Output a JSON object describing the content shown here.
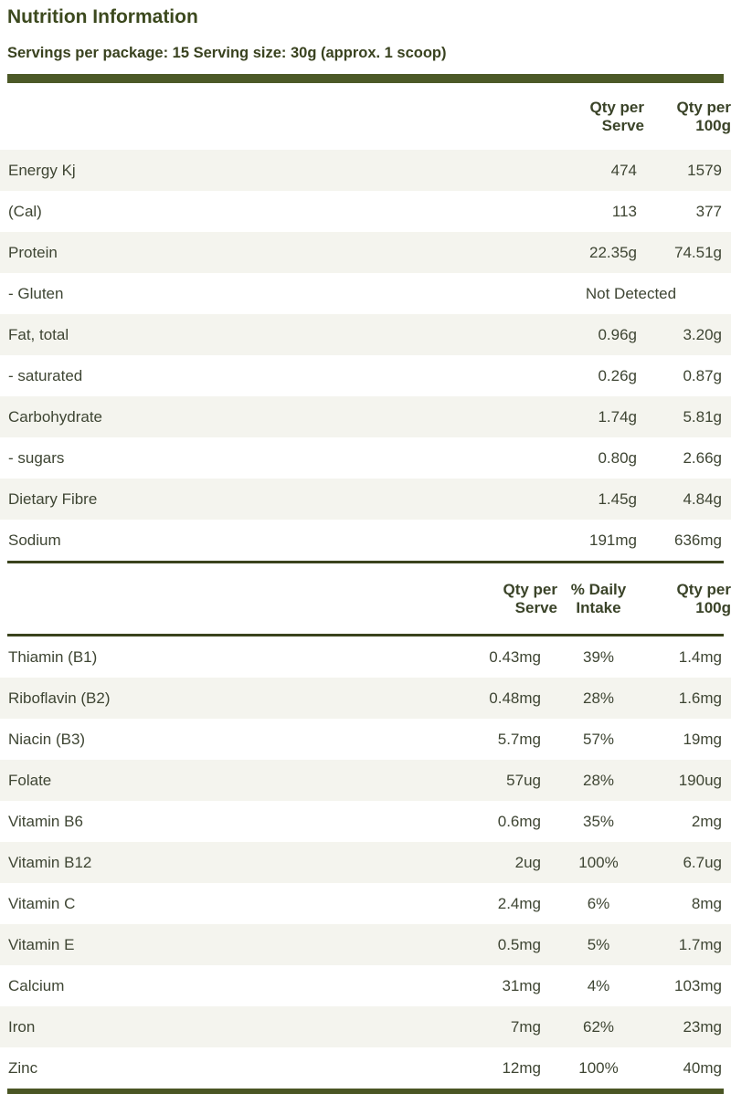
{
  "page": {
    "title": "Nutrition Information",
    "servings_line": "Servings per package: 15 Serving size: 30g (approx. 1 scoop)"
  },
  "colors": {
    "accent_olive": "#4c5927",
    "rule_dark_olive": "#3a431d",
    "row_stripe": "#f4f4ee",
    "title_text": "#3c491e",
    "body_text": "#3e4533"
  },
  "table1": {
    "headers": [
      {
        "line1": "Qty per",
        "line2": "Serve"
      },
      {
        "line1": "Qty per",
        "line2": "100g"
      }
    ],
    "rows": [
      {
        "label": "Energy Kj",
        "serve": "474",
        "per100": "1579"
      },
      {
        "label": "(Cal)",
        "serve": "113",
        "per100": "377"
      },
      {
        "label": "Protein",
        "serve": "22.35g",
        "per100": "74.51g"
      },
      {
        "label": "- Gluten",
        "span": "Not Detected"
      },
      {
        "label": "Fat, total",
        "serve": "0.96g",
        "per100": "3.20g"
      },
      {
        "label": "- saturated",
        "serve": "0.26g",
        "per100": "0.87g"
      },
      {
        "label": "Carbohydrate",
        "serve": "1.74g",
        "per100": "5.81g"
      },
      {
        "label": "- sugars",
        "serve": "0.80g",
        "per100": "2.66g"
      },
      {
        "label": "Dietary Fibre",
        "serve": "1.45g",
        "per100": "4.84g"
      },
      {
        "label": "Sodium",
        "serve": "191mg",
        "per100": "636mg"
      }
    ]
  },
  "table2": {
    "headers": [
      {
        "line1": "Qty per",
        "line2": "Serve"
      },
      {
        "line1": "% Daily",
        "line2": "Intake"
      },
      {
        "line1": "Qty per",
        "line2": "100g"
      }
    ],
    "rows": [
      {
        "label": "Thiamin (B1)",
        "serve": "0.43mg",
        "daily": "39%",
        "per100": "1.4mg"
      },
      {
        "label": "Riboflavin (B2)",
        "serve": "0.48mg",
        "daily": "28%",
        "per100": "1.6mg"
      },
      {
        "label": "Niacin (B3)",
        "serve": "5.7mg",
        "daily": "57%",
        "per100": "19mg"
      },
      {
        "label": "Folate",
        "serve": "57ug",
        "daily": "28%",
        "per100": "190ug"
      },
      {
        "label": "Vitamin B6",
        "serve": "0.6mg",
        "daily": "35%",
        "per100": "2mg"
      },
      {
        "label": "Vitamin B12",
        "serve": "2ug",
        "daily": "100%",
        "per100": "6.7ug"
      },
      {
        "label": "Vitamin C",
        "serve": "2.4mg",
        "daily": "6%",
        "per100": "8mg"
      },
      {
        "label": "Vitamin E",
        "serve": "0.5mg",
        "daily": "5%",
        "per100": "1.7mg"
      },
      {
        "label": "Calcium",
        "serve": "31mg",
        "daily": "4%",
        "per100": "103mg"
      },
      {
        "label": "Iron",
        "serve": "7mg",
        "daily": "62%",
        "per100": "23mg"
      },
      {
        "label": "Zinc",
        "serve": "12mg",
        "daily": "100%",
        "per100": "40mg"
      }
    ]
  }
}
